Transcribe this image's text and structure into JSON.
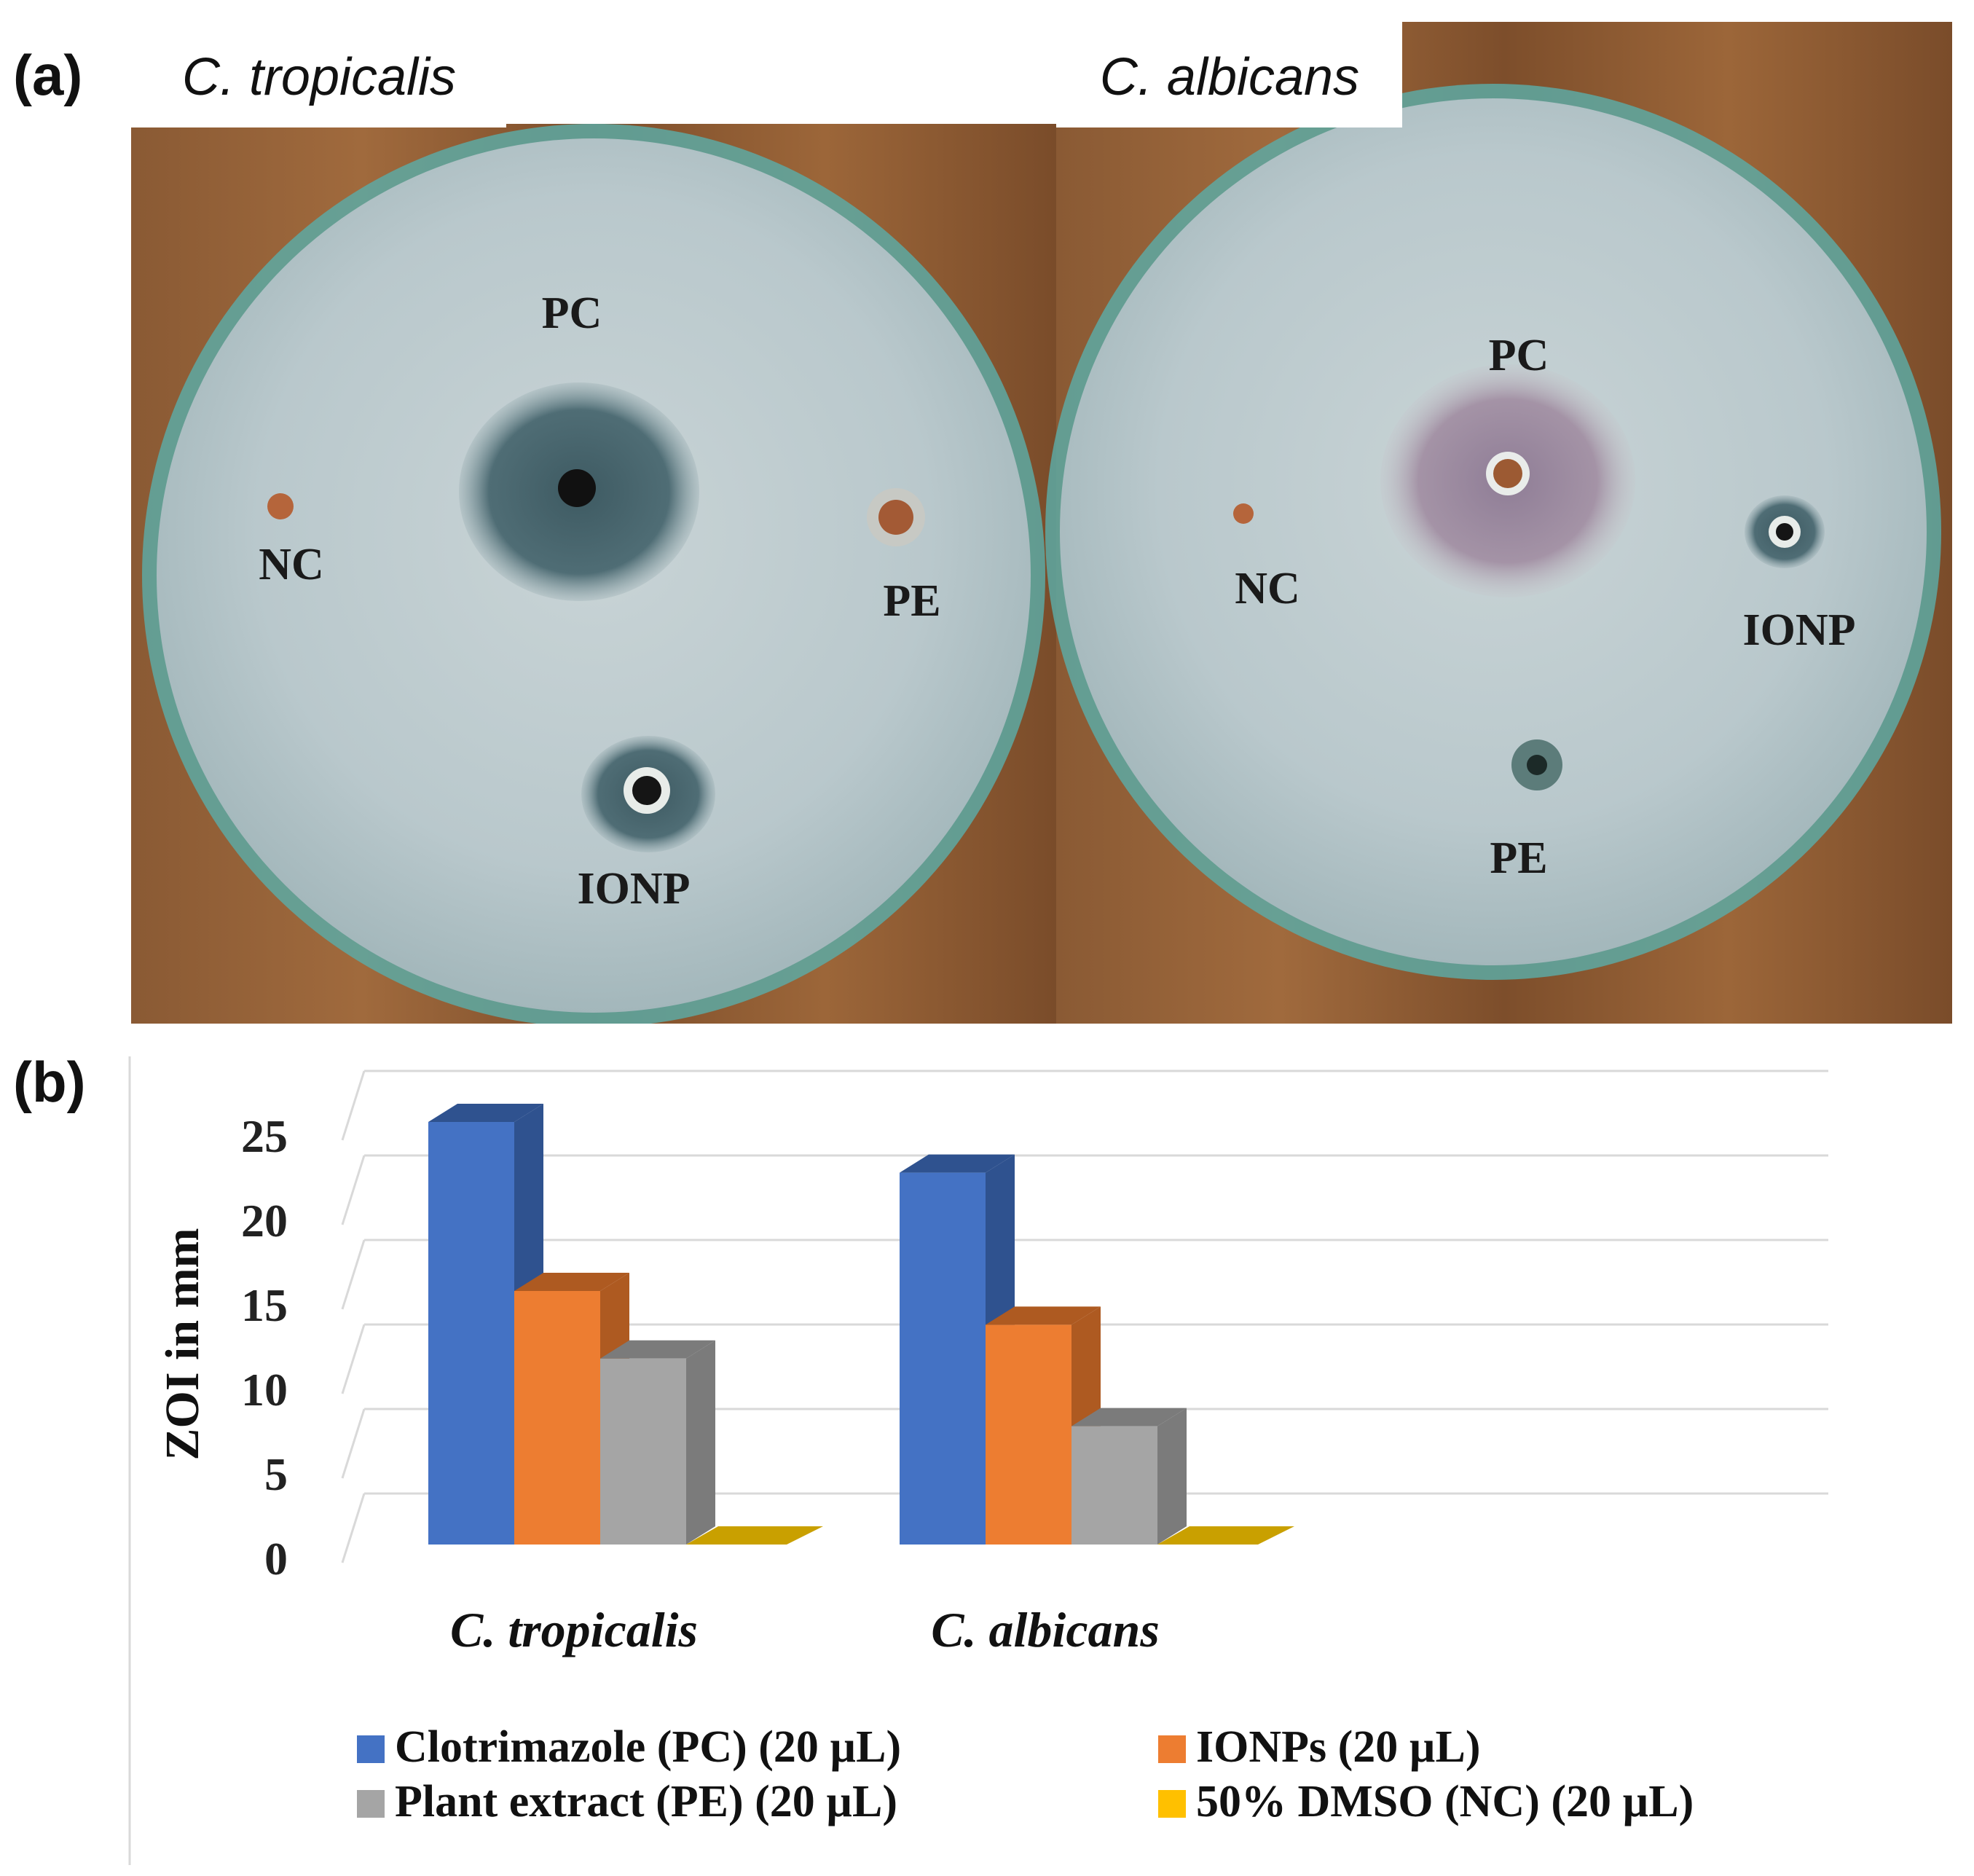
{
  "panel_a": {
    "label": "(a)",
    "plates": [
      {
        "species": "C. tropicalis",
        "wells": {
          "pc": "PC",
          "nc": "NC",
          "pe": "PE",
          "ionp": "IONP"
        }
      },
      {
        "species": "C. albicans",
        "wells": {
          "pc": "PC",
          "nc": "NC",
          "pe": "PE",
          "ionp": "IONP"
        }
      }
    ]
  },
  "panel_b": {
    "label": "(b)"
  },
  "chart_data": {
    "type": "bar",
    "style": "3d-clustered-column",
    "ylabel": "ZOI in mm",
    "xlabel": "",
    "ylim": [
      0,
      25
    ],
    "yticks": [
      "0",
      "5",
      "10",
      "15",
      "20",
      "25"
    ],
    "categories": [
      "C. tropicalis",
      "C. albicans"
    ],
    "series": [
      {
        "name": "Clotrimazole (PC) (20 µL)",
        "values": [
          25,
          22
        ],
        "color": "#4472C4",
        "color_dark": "#2F528F"
      },
      {
        "name": "IONPs  (20 µL)",
        "values": [
          15,
          13
        ],
        "color": "#ED7D31",
        "color_dark": "#AE5A21"
      },
      {
        "name": "Plant extract (PE) (20 µL)",
        "values": [
          11,
          7
        ],
        "color": "#A5A5A5",
        "color_dark": "#7B7B7B"
      },
      {
        "name": "50% DMSO (NC) (20 µL)",
        "values": [
          0,
          0
        ],
        "color": "#FFC000",
        "color_dark": "#BF9000"
      }
    ],
    "legend_position": "bottom"
  }
}
